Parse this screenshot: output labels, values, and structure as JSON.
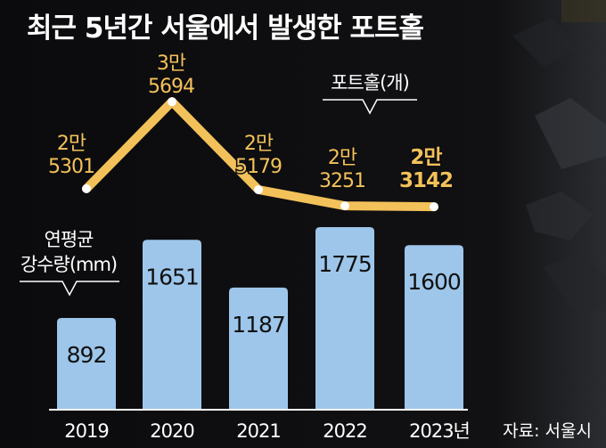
{
  "title": "최근 5년간 서울에서 발생한 포트홀",
  "source": "자료: 서울시",
  "colors": {
    "background": "#0d0d0f",
    "line": "#f3c15a",
    "bars": "#9dc6ea",
    "text": "#ffffff"
  },
  "chart_data": [
    {
      "type": "line",
      "label_lines": [
        "포트홀(개)"
      ],
      "categories": [
        "2019",
        "2020",
        "2021",
        "2022",
        "2023년"
      ],
      "values": [
        25301,
        35694,
        25179,
        23251,
        23142
      ],
      "value_labels": [
        [
          "2만",
          "5301"
        ],
        [
          "3만",
          "5694"
        ],
        [
          "2만",
          "5179"
        ],
        [
          "2만",
          "3251"
        ],
        [
          "2만",
          "3142"
        ]
      ]
    },
    {
      "type": "bar",
      "label_lines": [
        "연평균",
        "강수량(mm)"
      ],
      "categories": [
        "2019",
        "2020",
        "2021",
        "2022",
        "2023년"
      ],
      "values": [
        892,
        1651,
        1187,
        1775,
        1600
      ]
    }
  ]
}
